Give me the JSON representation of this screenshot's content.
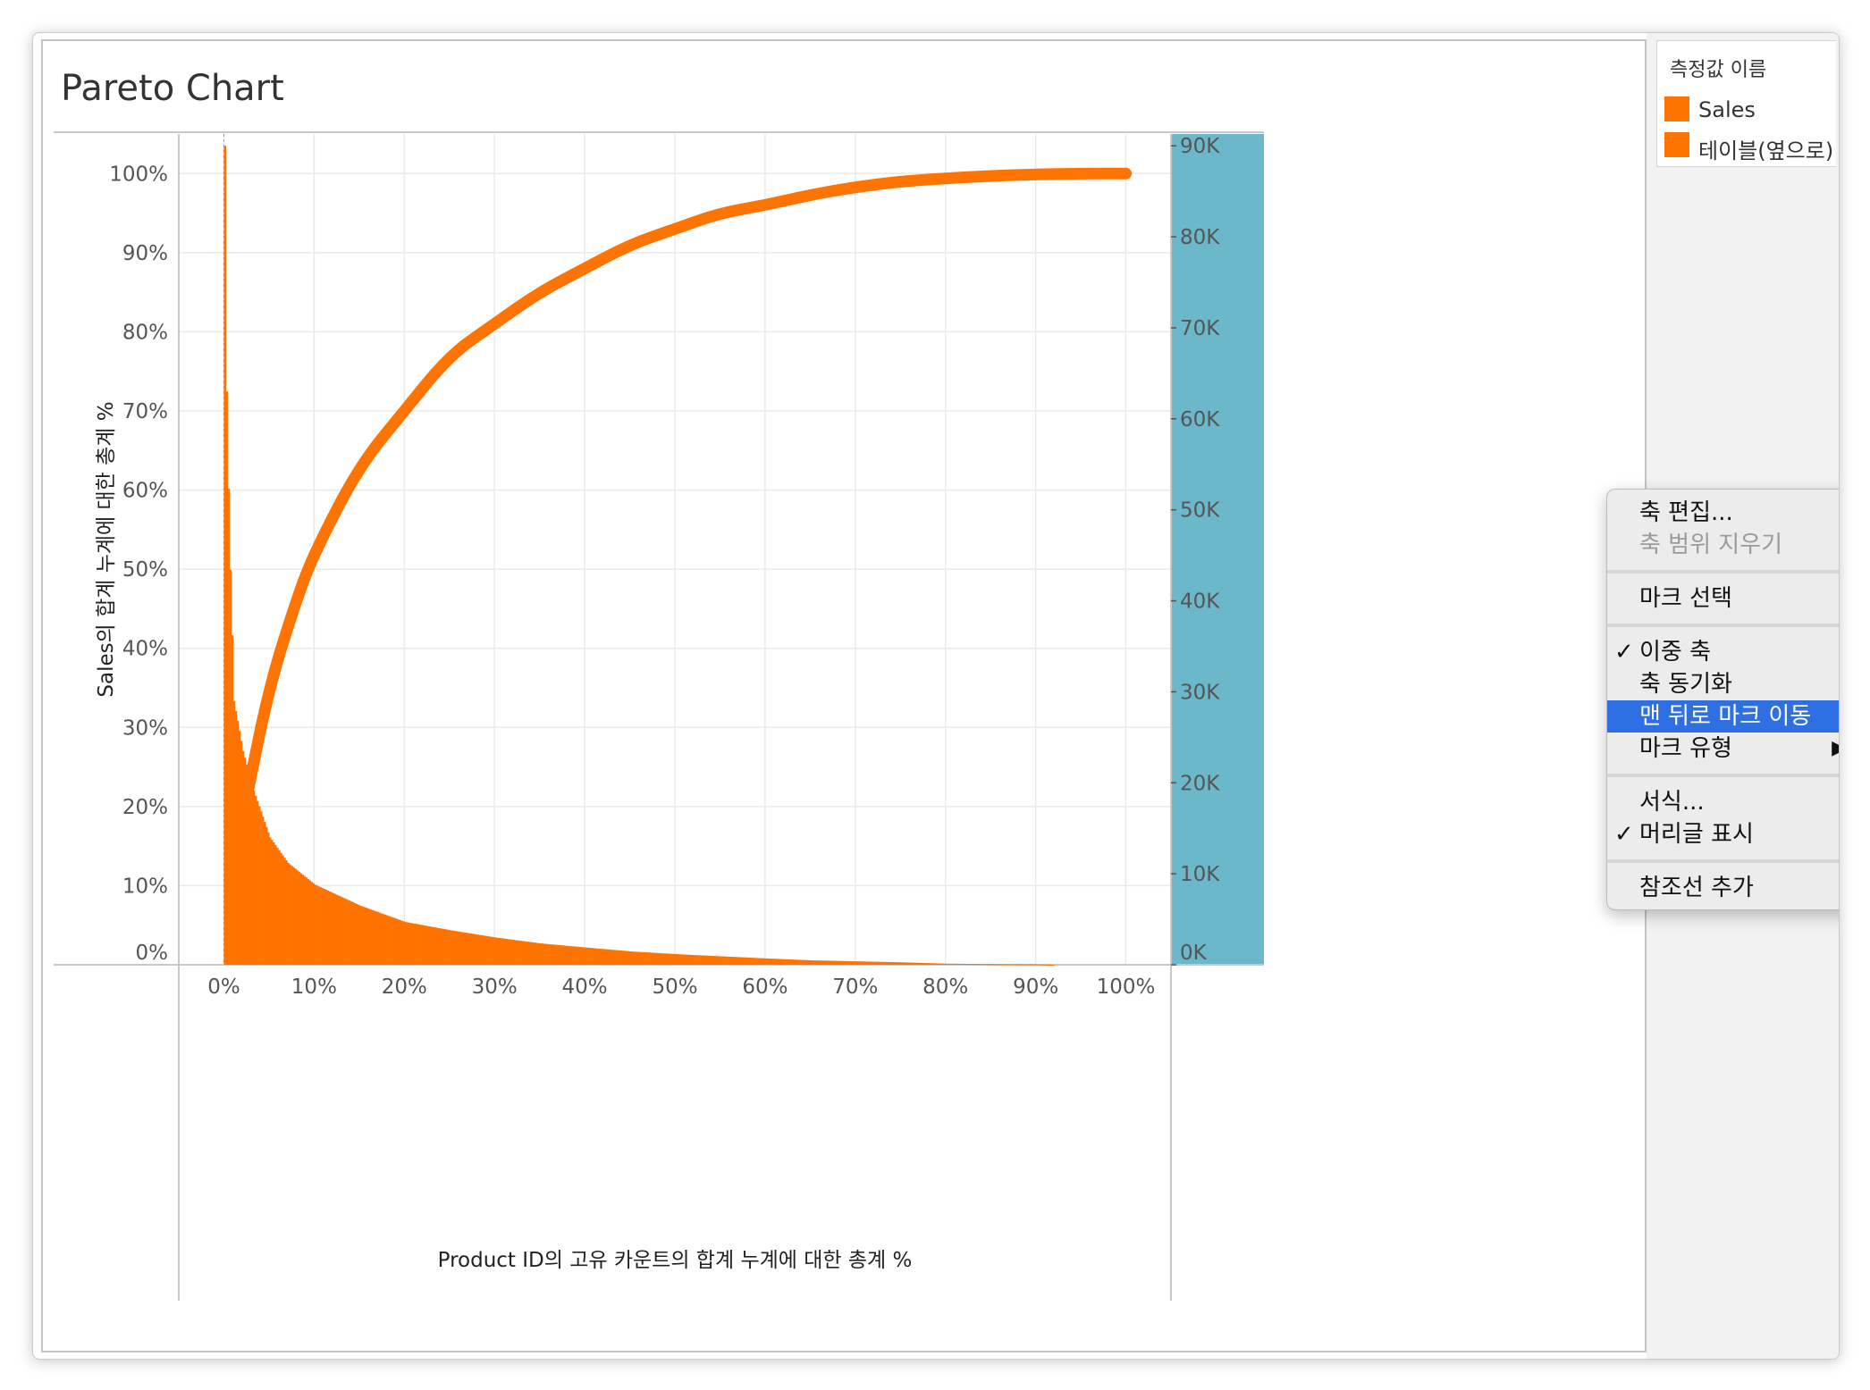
{
  "title": "Pareto Chart",
  "legend": {
    "title": "측정값 이름",
    "items": [
      {
        "label": "Sales",
        "color": "#ff7300"
      },
      {
        "label": "테이블(옆으로) 기",
        "color": "#ff7300"
      }
    ]
  },
  "colors": {
    "series": "#ff7300",
    "selected_axis_highlight": "#6ab8c9",
    "menu_highlight": "#2f6fe4"
  },
  "context_menu": {
    "items": [
      {
        "label": "축 편집...",
        "checked": false,
        "disabled": false,
        "highlighted": false
      },
      {
        "label": "축 범위 지우기",
        "checked": false,
        "disabled": true,
        "highlighted": false
      },
      {
        "label": "마크 선택",
        "checked": false,
        "disabled": false,
        "highlighted": false
      },
      {
        "label": "이중 축",
        "checked": true,
        "disabled": false,
        "highlighted": false
      },
      {
        "label": "축 동기화",
        "checked": false,
        "disabled": false,
        "highlighted": false
      },
      {
        "label": "맨 뒤로 마크 이동",
        "checked": false,
        "disabled": false,
        "highlighted": true
      },
      {
        "label": "마크 유형",
        "checked": false,
        "disabled": false,
        "highlighted": false,
        "submenu": true
      },
      {
        "label": "서식...",
        "checked": false,
        "disabled": false,
        "highlighted": false
      },
      {
        "label": "머리글 표시",
        "checked": true,
        "disabled": false,
        "highlighted": false
      },
      {
        "label": "참조선 추가",
        "checked": false,
        "disabled": false,
        "highlighted": false
      }
    ],
    "check_glyph": "✓",
    "submenu_glyph": "▶"
  },
  "chart_data": {
    "type": "bar",
    "title": "Pareto Chart",
    "xlabel": "Product ID의 고유 카운트의 합계 누계에 대한 총계 %",
    "ylabel": "Sales의 합계 누계에 대한 총계 %",
    "x_ticks": [
      "0%",
      "10%",
      "20%",
      "30%",
      "40%",
      "50%",
      "60%",
      "70%",
      "80%",
      "90%",
      "100%"
    ],
    "y_ticks": [
      "0%",
      "10%",
      "20%",
      "30%",
      "40%",
      "50%",
      "60%",
      "70%",
      "80%",
      "90%",
      "100%"
    ],
    "y2_ticks": [
      "0K",
      "10K",
      "20K",
      "30K",
      "40K",
      "50K",
      "60K",
      "70K",
      "80K",
      "90K"
    ],
    "xlim": [
      -0.05,
      1.05
    ],
    "ylim": [
      0,
      1.05
    ],
    "y2lim": [
      0,
      91300
    ],
    "grid": true,
    "legend_position": "right",
    "series": [
      {
        "name": "Sales",
        "type": "bar",
        "axis": "right",
        "x": [
          0,
          0.002,
          0.005,
          0.01,
          0.02,
          0.03,
          0.05,
          0.07,
          0.1,
          0.15,
          0.2,
          0.25,
          0.3,
          0.35,
          0.4,
          0.45,
          0.5,
          0.55,
          0.6,
          0.65,
          0.7,
          0.75,
          0.8,
          0.85,
          0.9,
          0.92
        ],
        "values": [
          90000,
          63000,
          47000,
          29000,
          23500,
          19700,
          14000,
          11200,
          8800,
          6500,
          4700,
          3800,
          3000,
          2350,
          1900,
          1470,
          1170,
          930,
          700,
          490,
          380,
          270,
          120,
          70,
          50,
          0
        ]
      },
      {
        "name": "테이블(옆으로) 기",
        "type": "line",
        "axis": "left",
        "x": [
          0.025,
          0.05,
          0.08,
          0.1,
          0.15,
          0.2,
          0.25,
          0.3,
          0.35,
          0.4,
          0.45,
          0.5,
          0.55,
          0.6,
          0.65,
          0.7,
          0.75,
          0.8,
          0.85,
          0.9,
          0.95,
          1.0
        ],
        "values": [
          0.21,
          0.35,
          0.46,
          0.52,
          0.63,
          0.7,
          0.77,
          0.81,
          0.85,
          0.88,
          0.91,
          0.93,
          0.95,
          0.96,
          0.973,
          0.983,
          0.99,
          0.994,
          0.997,
          0.999,
          1.0,
          1.0
        ]
      }
    ]
  }
}
